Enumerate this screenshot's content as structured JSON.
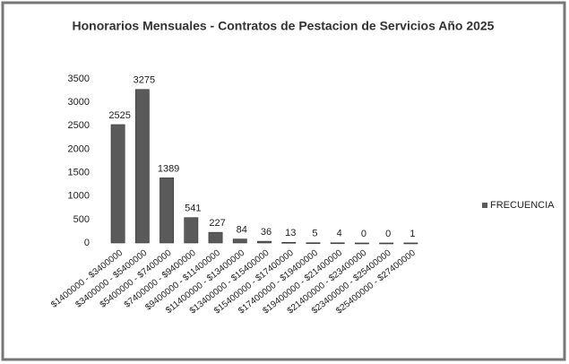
{
  "chart_data": {
    "type": "bar",
    "title": "Honorarios Mensuales - Contratos de Pestacion de Servicios Año 2025",
    "categories": [
      "$1400000 - $3400000",
      "$3400000 - $5400000",
      "$5400000 - $7400000",
      "$7400000 - $9400000",
      "$9400000 - $11400000",
      "$11400000 - $13400000",
      "$13400000 - $15400000",
      "$15400000 - $17400000",
      "$17400000 - $19400000",
      "$19400000 - $21400000",
      "$21400000 - $23400000",
      "$23400000 - $25400000",
      "$25400000 - $27400000"
    ],
    "series": [
      {
        "name": "FRECUENCIA",
        "color": "#5a5a5a",
        "values": [
          2525,
          3275,
          1389,
          541,
          227,
          84,
          36,
          13,
          5,
          4,
          0,
          0,
          1
        ]
      }
    ],
    "ylim": [
      0,
      3500
    ],
    "yticks": [
      0,
      500,
      1000,
      1500,
      2000,
      2500,
      3000,
      3500
    ],
    "grid": false,
    "legend": "right"
  }
}
